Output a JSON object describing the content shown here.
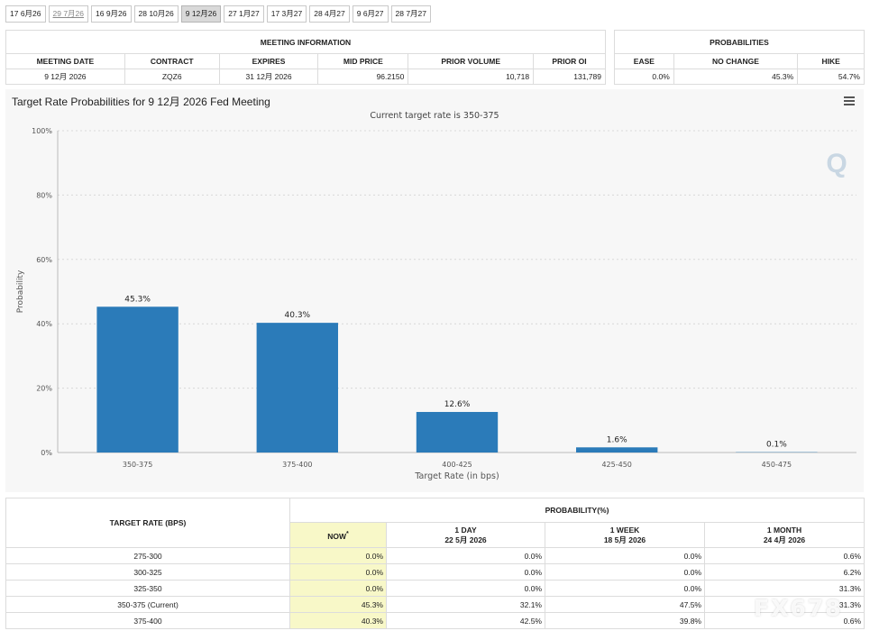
{
  "tabs": [
    "17 6月26",
    "29 7月26",
    "16 9月26",
    "28 10月26",
    "9 12月26",
    "27 1月27",
    "17 3月27",
    "28 4月27",
    "9 6月27",
    "28 7月27"
  ],
  "meeting_info": {
    "title": "MEETING INFORMATION",
    "headers": [
      "MEETING DATE",
      "CONTRACT",
      "EXPIRES",
      "MID PRICE",
      "PRIOR VOLUME",
      "PRIOR OI"
    ],
    "row": [
      "9 12月 2026",
      "ZQZ6",
      "31 12月 2026",
      "96.2150",
      "10,718",
      "131,789"
    ]
  },
  "probabilities": {
    "title": "PROBABILITIES",
    "headers": [
      "EASE",
      "NO CHANGE",
      "HIKE"
    ],
    "row": [
      "0.0%",
      "45.3%",
      "54.7%"
    ]
  },
  "chart": {
    "title": "Target Rate Probabilities for 9 12月 2026 Fed Meeting",
    "subtitle": "Current target rate is 350-375"
  },
  "chart_data": {
    "type": "bar",
    "categories": [
      "350-375",
      "375-400",
      "400-425",
      "425-450",
      "450-475"
    ],
    "values": [
      45.3,
      40.3,
      12.6,
      1.6,
      0.1
    ],
    "data_labels": [
      "45.3%",
      "40.3%",
      "12.6%",
      "1.6%",
      "0.1%"
    ],
    "xlabel": "Target Rate (in bps)",
    "ylabel": "Probability",
    "ylim": [
      0,
      100
    ],
    "yticks": [
      "0%",
      "20%",
      "40%",
      "60%",
      "80%",
      "100%"
    ],
    "grid": true,
    "bar_color": "#2b7bb9"
  },
  "history_table": {
    "col_rate": "TARGET RATE (BPS)",
    "group_title": "PROBABILITY(%)",
    "col_now": "NOW",
    "col_now_mark": "*",
    "columns": [
      {
        "label": "1 DAY",
        "date": "22 5月 2026"
      },
      {
        "label": "1 WEEK",
        "date": "18 5月 2026"
      },
      {
        "label": "1 MONTH",
        "date": "24 4月 2026"
      }
    ],
    "rows": [
      [
        "275-300",
        "0.0%",
        "0.0%",
        "0.0%",
        "0.6%"
      ],
      [
        "300-325",
        "0.0%",
        "0.0%",
        "0.0%",
        "6.2%"
      ],
      [
        "325-350",
        "0.0%",
        "0.0%",
        "0.0%",
        "31.3%"
      ],
      [
        "350-375 (Current)",
        "45.3%",
        "32.1%",
        "47.5%",
        "31.3%"
      ],
      [
        "375-400",
        "40.3%",
        "42.5%",
        "39.8%",
        "0.6%"
      ]
    ]
  },
  "watermark": "FX678"
}
